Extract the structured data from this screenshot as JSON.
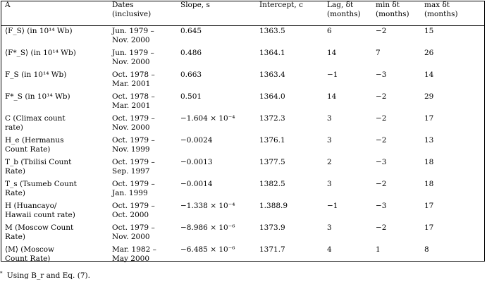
{
  "table": {
    "headers": [
      [
        "A"
      ],
      [
        "Dates",
        "(inclusive)"
      ],
      [
        "Slope, s"
      ],
      [
        "Intercept, c"
      ],
      [
        "Lag, δt",
        "(months)"
      ],
      [
        "min δt",
        "(months)"
      ],
      [
        "max δt",
        "(months)"
      ]
    ],
    "rows": [
      [
        [
          "⟨F_S⟩ (in 10¹⁴ Wb)"
        ],
        [
          "Jun. 1979 –",
          "Nov. 2000"
        ],
        [
          "0.645"
        ],
        [
          "1363.5"
        ],
        [
          "6"
        ],
        [
          "−2"
        ],
        [
          "15"
        ]
      ],
      [
        [
          "⟨F*_S⟩ (in 10¹⁴ Wb)"
        ],
        [
          "Jun. 1979 –",
          "Nov. 2000"
        ],
        [
          "0.486"
        ],
        [
          "1364.1"
        ],
        [
          "14"
        ],
        [
          "7"
        ],
        [
          "26"
        ]
      ],
      [
        [
          "F_S (in 10¹⁴ Wb)"
        ],
        [
          "Oct. 1978 –",
          "Mar. 2001"
        ],
        [
          "0.663"
        ],
        [
          "1363.4"
        ],
        [
          "−1"
        ],
        [
          "−3"
        ],
        [
          "14"
        ]
      ],
      [
        [
          "F*_S (in 10¹⁴ Wb)"
        ],
        [
          "Oct. 1978 –",
          "Mar. 2001"
        ],
        [
          "0.501"
        ],
        [
          "1364.0"
        ],
        [
          "14"
        ],
        [
          "−2"
        ],
        [
          "29"
        ]
      ],
      [
        [
          "C (Climax count",
          "rate)"
        ],
        [
          "Oct. 1979 –",
          "Nov. 2000"
        ],
        [
          "−1.604 × 10⁻⁴"
        ],
        [
          "1372.3"
        ],
        [
          "3"
        ],
        [
          "−2"
        ],
        [
          "17"
        ]
      ],
      [
        [
          "H_e (Hermanus",
          "Count Rate)"
        ],
        [
          "Oct. 1979 –",
          "Nov. 1999"
        ],
        [
          "−0.0024"
        ],
        [
          "1376.1"
        ],
        [
          "3"
        ],
        [
          "−2"
        ],
        [
          "13"
        ]
      ],
      [
        [
          "T_b (Tbilisi Count",
          "Rate)"
        ],
        [
          "Oct. 1979 –",
          "Sep. 1997"
        ],
        [
          "−0.0013"
        ],
        [
          "1377.5"
        ],
        [
          "2"
        ],
        [
          "−3"
        ],
        [
          "18"
        ]
      ],
      [
        [
          "T_s (Tsumeb Count",
          "Rate)"
        ],
        [
          "Oct. 1979 –",
          "Jan. 1999"
        ],
        [
          "−0.0014"
        ],
        [
          "1382.5"
        ],
        [
          "3"
        ],
        [
          "−2"
        ],
        [
          "18"
        ]
      ],
      [
        [
          "H (Huancayo/",
          "Hawaii count rate)"
        ],
        [
          "Oct. 1979 –",
          "Oct. 2000"
        ],
        [
          "−1.338 × 10⁻⁴"
        ],
        [
          "1.388.9"
        ],
        [
          "−1"
        ],
        [
          "−3"
        ],
        [
          "17"
        ]
      ],
      [
        [
          "M (Moscow Count",
          "Rate)"
        ],
        [
          "Oct. 1979 –",
          "Nov. 2000"
        ],
        [
          "−8.986 × 10⁻⁶"
        ],
        [
          "1373.9"
        ],
        [
          "3"
        ],
        [
          "−2"
        ],
        [
          "17"
        ]
      ],
      [
        [
          "⟨M⟩ (Moscow",
          "Count Rate)"
        ],
        [
          "Mar. 1982 –",
          "May 2000"
        ],
        [
          "−6.485 × 10⁻⁶"
        ],
        [
          "1371.7"
        ],
        [
          "4"
        ],
        [
          "1"
        ],
        [
          "8"
        ]
      ]
    ]
  },
  "footnote": {
    "marker": "*",
    "text": "Using B_r and Eq. (7)."
  }
}
